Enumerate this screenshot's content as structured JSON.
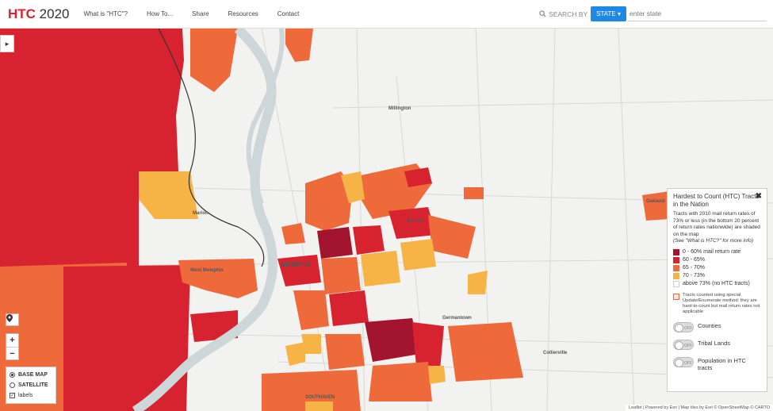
{
  "header": {
    "brand_highlight": "HTC",
    "brand_rest": " 2020",
    "nav": [
      "What is \"HTC\"?",
      "How To...",
      "Share",
      "Resources",
      "Contact"
    ],
    "search_label": "SEARCH BY",
    "state_button": "STATE ▾",
    "state_placeholder": "enter state"
  },
  "map": {
    "towns": [
      "Millington",
      "Marion",
      "West Memphis",
      "MEMPHIS",
      "Bartlett",
      "Germantown",
      "Collierville",
      "Oakland",
      "SOUTHAVEN"
    ]
  },
  "controls": {
    "toggle_icon": "▸",
    "locate_icon": "location-pin-icon",
    "zoom_in": "+",
    "zoom_out": "−",
    "basemap_options": [
      "BASE MAP",
      "SATELLITE"
    ],
    "labels_option": "labels",
    "labels_check": "✓"
  },
  "legend": {
    "title": "Hardest to Count (HTC) Tracts in the Nation",
    "description": "Tracts with 2010 mail return rates of 73% or less (in the bottom 20 percent of return rates nationwide) are shaded on the map",
    "note": "(See \"What is HTC?\" for more info)",
    "close": "✖",
    "items": [
      {
        "label": "0 - 60% mail return rate",
        "color": "#a3142e"
      },
      {
        "label": "60 - 65%",
        "color": "#d7232f"
      },
      {
        "label": "65 - 70%",
        "color": "#ee6a3a"
      },
      {
        "label": "70 - 73%",
        "color": "#f5b445"
      },
      {
        "label": "above 73% (no HTC tracts)",
        "color": "#ffffff"
      }
    ],
    "special": "Tracts counted using special Update/Enumerate method; they are hard-to-count but mail return rates not applicable",
    "toggle_off": "OFF",
    "toggles": [
      "Counties",
      "Tribal Lands",
      "Population in HTC tracts"
    ]
  },
  "attribution": "Leaflet | Powered by Esri | Map tiles by Esri © OpenStreetMap © CARTO"
}
